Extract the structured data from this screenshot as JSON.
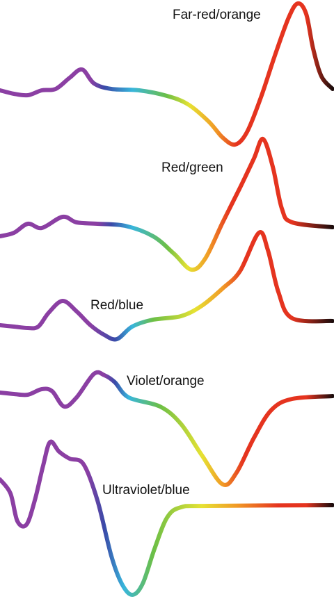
{
  "curves": [
    {
      "label": "Far-red/orange"
    },
    {
      "label": "Red/green"
    },
    {
      "label": "Red/blue"
    },
    {
      "label": "Violet/orange"
    },
    {
      "label": "Ultraviolet/blue"
    }
  ]
}
